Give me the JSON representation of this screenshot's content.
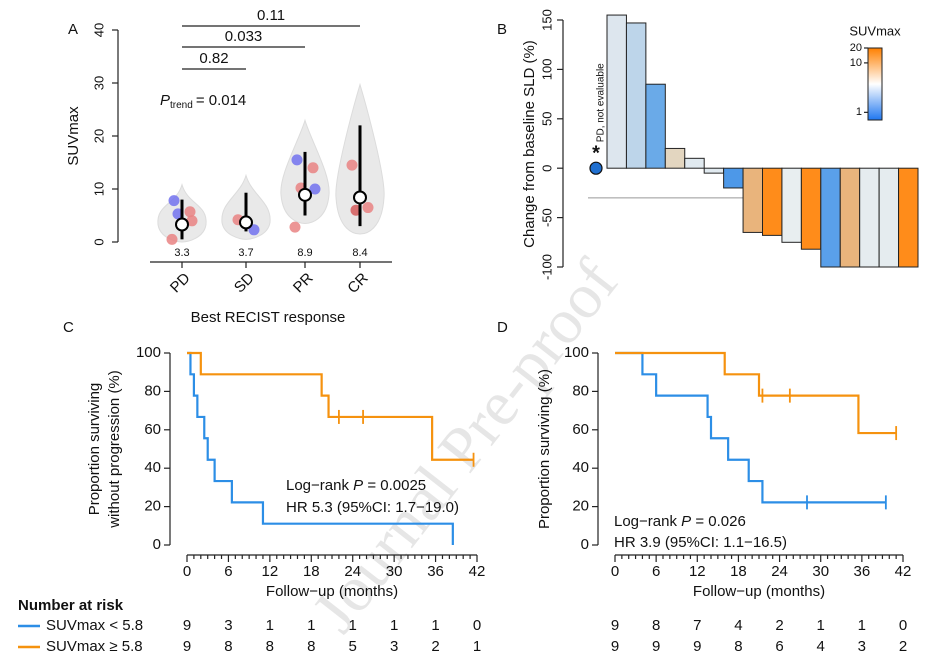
{
  "watermark": "Journal Pre-proof",
  "chart_data": [
    {
      "type": "violin",
      "panel": "A",
      "categories": [
        "PD",
        "SD",
        "PR",
        "CR"
      ],
      "values": [
        3.3,
        3.7,
        8.9,
        8.4
      ],
      "whiskers": [
        [
          0.5,
          8
        ],
        [
          2,
          9.3
        ],
        [
          5,
          17
        ],
        [
          3,
          22
        ]
      ],
      "points": [
        [
          7.8,
          5.7,
          5.3,
          4.0,
          0.5
        ],
        [
          4.2,
          2.3
        ],
        [
          15.5,
          14,
          10.2,
          10,
          2.8
        ],
        [
          14.5,
          6.5,
          6
        ]
      ],
      "point_colors": [
        [
          "#7272ee",
          "#e98383",
          "#7272ee",
          "#e98383",
          "#e98383"
        ],
        [
          "#e98383",
          "#7272ee"
        ],
        [
          "#7272ee",
          "#e98383",
          "#e98383",
          "#7272ee",
          "#e98383"
        ],
        [
          "#e98383",
          "#e98383",
          "#d45a5a"
        ]
      ],
      "ylim": [
        0,
        40
      ],
      "yticks": [
        0,
        10,
        20,
        30,
        40
      ],
      "ylabel": "SUVmax",
      "xlabel": "Best RECIST response",
      "p_values": [
        0.11,
        0.033,
        0.82
      ],
      "trend": {
        "symbol": "P",
        "subscript": "trend",
        "text": "= 0.014"
      }
    },
    {
      "type": "bar",
      "panel": "B",
      "values": [
        155,
        147,
        85,
        20,
        10,
        -5,
        -20,
        -65,
        -68,
        -75,
        -82,
        -100,
        -100,
        -100,
        -100,
        -100
      ],
      "colors": [
        "#dde6ee",
        "#bdd5ea",
        "#6aaae8",
        "#e3d6c0",
        "#e1eaf0",
        "#e1eaf0",
        "#4d98e8",
        "#e9b47c",
        "#ff8c1a",
        "#e8eef0",
        "#ff8c1a",
        "#5aa0ea",
        "#e9b47c",
        "#e5ecef",
        "#e5ecef",
        "#ff8c1a"
      ],
      "ylim": [
        -100,
        150
      ],
      "yticks": [
        -100,
        -50,
        0,
        50,
        100,
        150
      ],
      "ylabel": "Change from baseline SLD (%)",
      "reference_line": -30,
      "not_evaluable": {
        "label": "PD, not evaluable",
        "marker": "*",
        "value": 0,
        "color": "#1f6fd0"
      },
      "colorbar": {
        "title": "SUVmax",
        "lim": [
          0.7,
          20
        ],
        "ticks": [
          1,
          10,
          20
        ],
        "log": true,
        "colors": [
          "#1f77f0",
          "#ffffff",
          "#ff8000"
        ]
      }
    },
    {
      "type": "step",
      "panel": "C",
      "series": [
        {
          "name": "SUVmax < 5.8",
          "color": "#2c8ee6",
          "x": [
            0,
            0.5,
            1,
            1.5,
            2.5,
            3,
            4,
            6.5,
            11,
            38.5
          ],
          "values": [
            100,
            88.9,
            77.8,
            66.7,
            55.6,
            44.4,
            33.3,
            22.2,
            11.1,
            0
          ],
          "censored_x": [],
          "censored_y": [],
          "at_risk": [
            9,
            3,
            1,
            1,
            1,
            1,
            1,
            0
          ]
        },
        {
          "name": "SUVmax ≥ 5.8",
          "color": "#f5920f",
          "x": [
            0,
            2,
            19.5,
            20.5,
            35.5
          ],
          "values": [
            100,
            88.9,
            77.8,
            66.7,
            44.4
          ],
          "censored_x": [
            22,
            25.5,
            41.5
          ],
          "censored_y": [
            66.7,
            66.7,
            44.4
          ],
          "at_risk": [
            9,
            8,
            8,
            8,
            5,
            3,
            2,
            1
          ]
        }
      ],
      "xlim": [
        0,
        42
      ],
      "xticks": [
        0,
        6,
        12,
        18,
        24,
        30,
        36,
        42
      ],
      "xminorticks": [
        1,
        2,
        3,
        4,
        5,
        7,
        8,
        9,
        10,
        11,
        13,
        14,
        15,
        16,
        17,
        19,
        20,
        21,
        22,
        23,
        25,
        26,
        27,
        28,
        29,
        31,
        32,
        33,
        34,
        35,
        37,
        38,
        39,
        40,
        41
      ],
      "ylim": [
        0,
        100
      ],
      "yticks": [
        0,
        20,
        40,
        60,
        80,
        100
      ],
      "xlabel": "Follow−up (months)",
      "ylabel": [
        "Proportion surviving",
        "without progression (%)"
      ],
      "annotations": [
        {
          "prefix": "Log−rank ",
          "italic": "P",
          "suffix": " = 0.0025"
        },
        {
          "text": "HR 5.3 (95%CI: 1.7−19.0)"
        }
      ],
      "risk_title": "Number at risk"
    },
    {
      "type": "step",
      "panel": "D",
      "series": [
        {
          "color": "#2c8ee6",
          "x": [
            0,
            4,
            6,
            13.5,
            14,
            16.5,
            19.5,
            21.5
          ],
          "values": [
            100,
            88.9,
            77.8,
            66.7,
            55.6,
            44.4,
            33.3,
            22.2
          ],
          "censored_x": [
            28,
            39.5
          ],
          "censored_y": [
            22.2,
            22.2
          ],
          "at_risk": [
            9,
            8,
            7,
            4,
            2,
            1,
            1,
            0
          ]
        },
        {
          "color": "#f5920f",
          "x": [
            0,
            16,
            21,
            35.5
          ],
          "values": [
            100,
            88.9,
            77.8,
            58.3
          ],
          "censored_x": [
            21.5,
            25.5,
            41
          ],
          "censored_y": [
            77.8,
            77.8,
            58.3
          ],
          "at_risk": [
            9,
            9,
            9,
            8,
            6,
            4,
            3,
            2
          ]
        }
      ],
      "xlim": [
        0,
        42
      ],
      "xticks": [
        0,
        6,
        12,
        18,
        24,
        30,
        36,
        42
      ],
      "xminorticks": [
        1,
        2,
        3,
        4,
        5,
        7,
        8,
        9,
        10,
        11,
        13,
        14,
        15,
        16,
        17,
        19,
        20,
        21,
        22,
        23,
        25,
        26,
        27,
        28,
        29,
        31,
        32,
        33,
        34,
        35,
        37,
        38,
        39,
        40,
        41
      ],
      "ylim": [
        0,
        100
      ],
      "yticks": [
        0,
        20,
        40,
        60,
        80,
        100
      ],
      "xlabel": "Follow−up (months)",
      "ylabel": [
        "Proportion surviving (%)"
      ],
      "annotations": [
        {
          "prefix": "Log−rank ",
          "italic": "P",
          "suffix": " = 0.026"
        },
        {
          "text": "HR 3.9 (95%CI: 1.1−16.5)"
        }
      ]
    }
  ]
}
